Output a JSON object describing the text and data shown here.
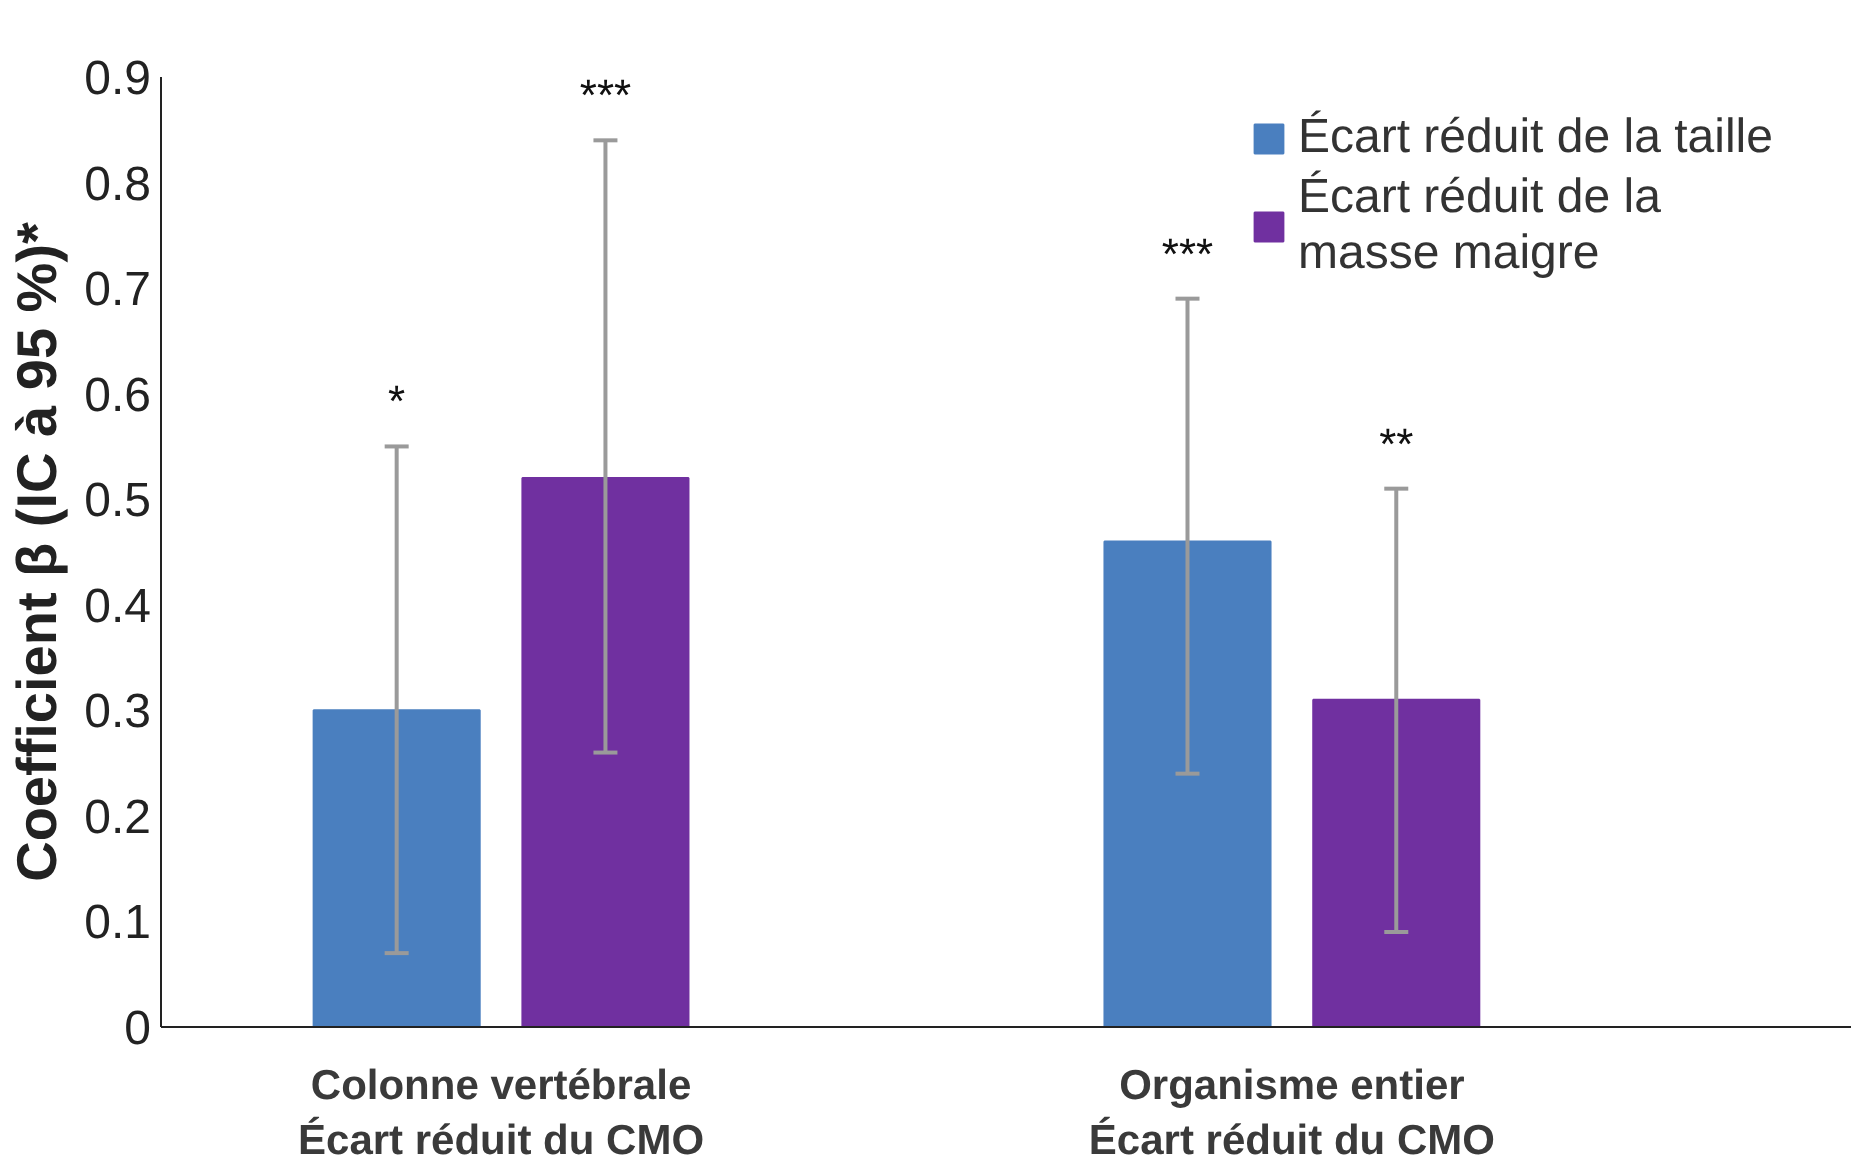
{
  "chart_data": {
    "type": "bar",
    "ylabel": "Coefficient β (IC à 95 %)*",
    "categories": [
      "Colonne vertébrale\nÉcart réduit du CMO",
      "Organisme entier\nÉcart réduit du CMO"
    ],
    "series": [
      {
        "name": "Écart réduit de la taille",
        "color": "#4a7fbf",
        "values": [
          0.3,
          0.46
        ],
        "errors": [
          [
            0.07,
            0.55
          ],
          [
            0.24,
            0.69
          ]
        ]
      },
      {
        "name": "Écart réduit de la\nmasse maigre",
        "color": "#7030a0",
        "values": [
          0.52,
          0.31
        ],
        "errors": [
          [
            0.26,
            0.84
          ],
          [
            0.09,
            0.51
          ]
        ]
      }
    ],
    "annotations": [
      "*",
      "***",
      "***",
      "**"
    ],
    "ylim": [
      0,
      0.9
    ],
    "yticks": [
      0,
      0.1,
      0.2,
      0.3,
      0.4,
      0.5,
      0.6,
      0.7,
      0.8,
      0.9
    ],
    "grid": false,
    "legend": "top right"
  }
}
